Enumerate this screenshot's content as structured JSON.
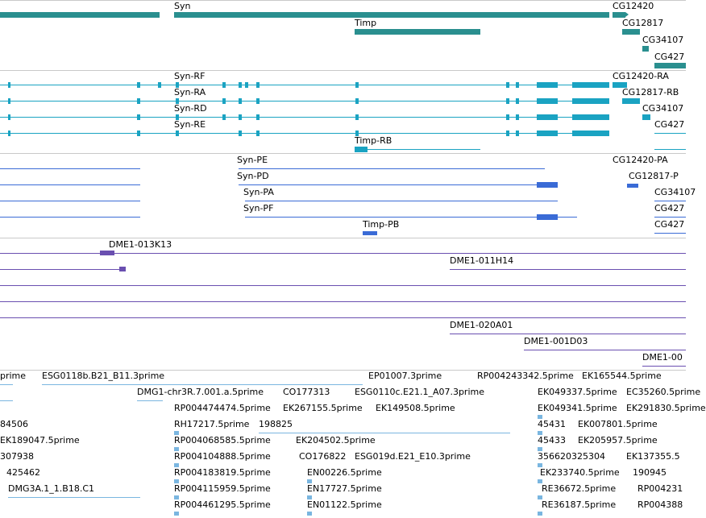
{
  "colors": {
    "gene": "#2a8f8f",
    "transcript": "#1aa3c2",
    "protein": "#3a6bd6",
    "clone": "#6a4fb0",
    "est": "#7ab6e0",
    "separator": "#c9c9c9"
  },
  "tracks": {
    "genes": [
      {
        "label": "Syn"
      },
      {
        "label": "CG12420"
      },
      {
        "label": "CG12817"
      },
      {
        "label": "Timp"
      },
      {
        "label": "CG34107"
      },
      {
        "label": "CG427"
      }
    ],
    "transcripts": [
      {
        "label": "Syn-RF"
      },
      {
        "label": "CG12420-RA"
      },
      {
        "label": "Syn-RA"
      },
      {
        "label": "CG12817-RB"
      },
      {
        "label": "Syn-RD"
      },
      {
        "label": "CG34107"
      },
      {
        "label": "Syn-RE"
      },
      {
        "label": "CG427"
      },
      {
        "label": "Timp-RB"
      }
    ],
    "proteins": [
      {
        "label": "Syn-PE"
      },
      {
        "label": "CG12420-PA"
      },
      {
        "label": "Syn-PD"
      },
      {
        "label": "CG12817-P"
      },
      {
        "label": "Syn-PA"
      },
      {
        "label": "CG34107"
      },
      {
        "label": "Syn-PF"
      },
      {
        "label": "CG427"
      },
      {
        "label": "Timp-PB"
      },
      {
        "label": "CG427"
      }
    ],
    "clones": [
      {
        "label": "DME1-013K13"
      },
      {
        "label": "DME1-011H14"
      },
      {
        "label": "DME1-020A01"
      },
      {
        "label": "DME1-001D03"
      },
      {
        "label": "DME1-00"
      }
    ],
    "ests": [
      {
        "label": "prime"
      },
      {
        "label": "ESG0118b.B21_B11.3prime"
      },
      {
        "label": "EP01007.3prime"
      },
      {
        "label": "RP004243342.5prime"
      },
      {
        "label": "EK165544.5prime"
      },
      {
        "label": "DMG1-chr3R.7.001.a.5prime"
      },
      {
        "label": "CO177313"
      },
      {
        "label": "ESG0110c.E21.1_A07.3prime"
      },
      {
        "label": "EK049337.5prime"
      },
      {
        "label": "EC35260.5prime"
      },
      {
        "label": "RP004474474.5prime"
      },
      {
        "label": "EK267155.5prime"
      },
      {
        "label": "EK149508.5prime"
      },
      {
        "label": "EK049341.5prime"
      },
      {
        "label": "EK291830.5prime"
      },
      {
        "label": "84506"
      },
      {
        "label": "RH17217.5prime"
      },
      {
        "label": "198825"
      },
      {
        "label": "45431"
      },
      {
        "label": "EK007801.5prime"
      },
      {
        "label": "EK189047.5prime"
      },
      {
        "label": "RP004068585.5prime"
      },
      {
        "label": "EK204502.5prime"
      },
      {
        "label": "45433"
      },
      {
        "label": "EK205957.5prime"
      },
      {
        "label": "307938"
      },
      {
        "label": "RP004104888.5prime"
      },
      {
        "label": "CO176822"
      },
      {
        "label": "ESG019d.E21_E10.3prime"
      },
      {
        "label": "356620325304"
      },
      {
        "label": "EK137355.5"
      },
      {
        "label": "425462"
      },
      {
        "label": "RP004183819.5prime"
      },
      {
        "label": "EN00226.5prime"
      },
      {
        "label": "EK233740.5prime"
      },
      {
        "label": "190945"
      },
      {
        "label": "DMG3A.1_1.B18.C1"
      },
      {
        "label": "RP004115959.5prime"
      },
      {
        "label": "EN17727.5prime"
      },
      {
        "label": "RE36672.5prime"
      },
      {
        "label": "RP004231"
      },
      {
        "label": "RP004461295.5prime"
      },
      {
        "label": "EN01122.5prime"
      },
      {
        "label": "RE36187.5prime"
      },
      {
        "label": "RP004388"
      }
    ]
  }
}
